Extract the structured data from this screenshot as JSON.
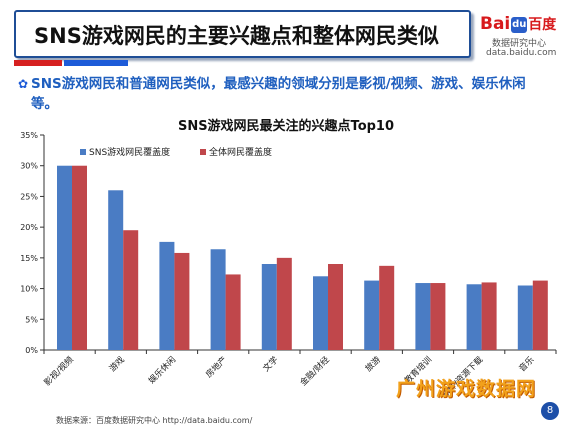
{
  "header": {
    "title": "SNS游戏网民的主要兴趣点和整体网民类似"
  },
  "logo": {
    "brand_prefix": "Bai",
    "brand_paw": "du",
    "brand_zh": "百度",
    "subtitle": "数据研究中心",
    "url": "data.baidu.com"
  },
  "bullet": {
    "text": "SNS游戏网民和普通网民类似，最感兴趣的领域分别是影视/视频、游戏、娱乐休闲等。"
  },
  "footer": {
    "source": "数据来源：百度数据研究中心   http://data.baidu.com/",
    "watermark": "广州游戏数据网",
    "page_number": "8"
  },
  "colors": {
    "series1": "#4a7cc4",
    "series2": "#c0474b",
    "accent_red": "#d62020",
    "accent_blue": "#1d5bd8"
  },
  "chart_data": {
    "type": "bar",
    "title": "SNS游戏网民最关注的兴趣点Top10",
    "xlabel": "",
    "ylabel": "",
    "ylim": [
      0,
      35
    ],
    "yticks": [
      "0%",
      "5%",
      "10%",
      "15%",
      "20%",
      "25%",
      "30%",
      "35%"
    ],
    "categories": [
      "影视/视频",
      "游戏",
      "娱乐休闲",
      "房地产",
      "文学",
      "金融/财经",
      "旅游",
      "教育培训",
      "软件/资源下载",
      "音乐"
    ],
    "series": [
      {
        "name": "SNS游戏网民覆盖度",
        "values": [
          30.0,
          26.0,
          17.6,
          16.4,
          14.0,
          12.0,
          11.3,
          10.9,
          10.7,
          10.5
        ]
      },
      {
        "name": "全体网民覆盖度",
        "values": [
          30.0,
          19.5,
          15.8,
          12.3,
          15.0,
          14.0,
          13.7,
          10.9,
          11.0,
          11.3
        ]
      }
    ],
    "grid": false,
    "legend": "top-left"
  }
}
